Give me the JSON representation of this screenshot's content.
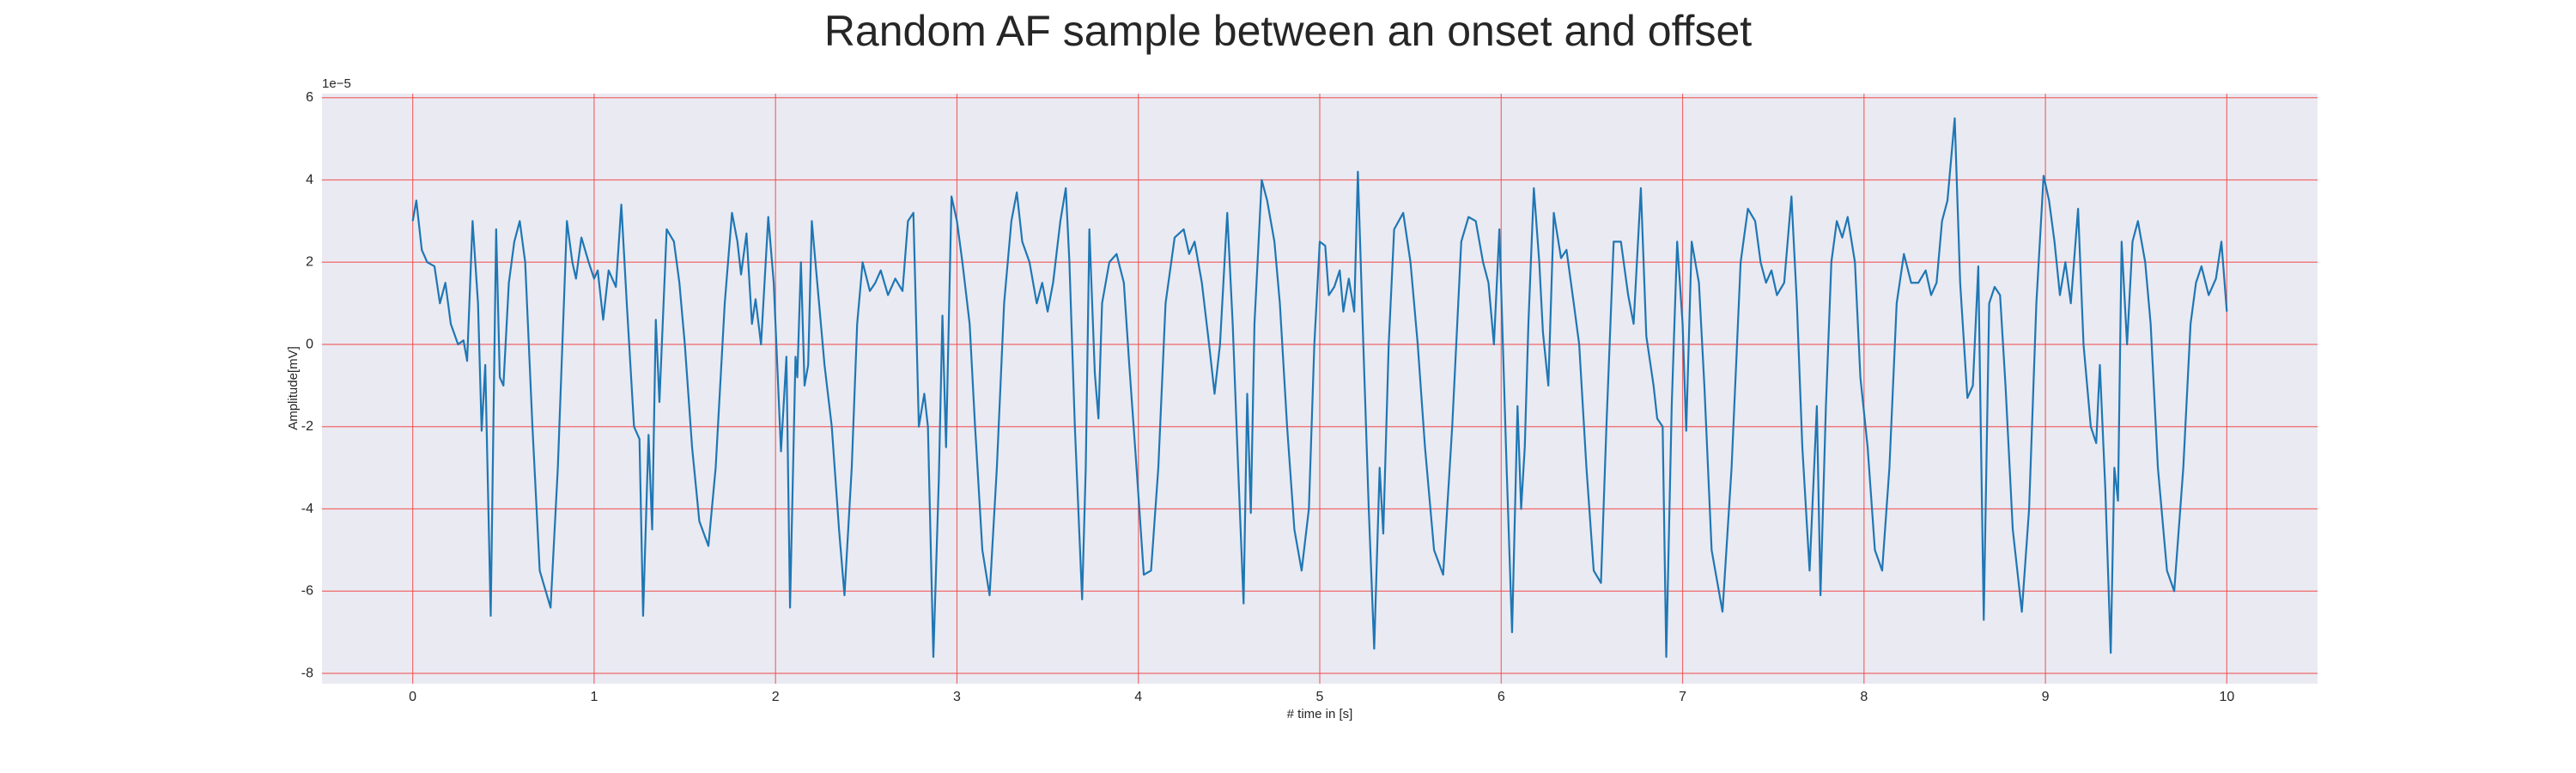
{
  "chart_data": {
    "type": "line",
    "title": "Random AF sample between an onset and offset",
    "xlabel": "# time in [s]",
    "ylabel": "Amplitude[mV]",
    "y_offset_label": "1e−5",
    "color": "#1f77b4",
    "grid": true,
    "xlim": [
      -0.5,
      10.5
    ],
    "ylim": [
      -8.25,
      6.1
    ],
    "xticks": [
      0,
      1,
      2,
      3,
      4,
      5,
      6,
      7,
      8,
      9,
      10
    ],
    "yticks": [
      -8,
      -6,
      -4,
      -2,
      0,
      2,
      4,
      6
    ],
    "x": [
      0.0,
      0.02,
      0.05,
      0.08,
      0.12,
      0.15,
      0.18,
      0.21,
      0.25,
      0.28,
      0.3,
      0.33,
      0.36,
      0.38,
      0.4,
      0.43,
      0.46,
      0.48,
      0.5,
      0.53,
      0.56,
      0.59,
      0.62,
      0.66,
      0.7,
      0.76,
      0.8,
      0.85,
      0.88,
      0.9,
      0.93,
      0.97,
      1.0,
      1.02,
      1.05,
      1.08,
      1.12,
      1.15,
      1.18,
      1.22,
      1.25,
      1.27,
      1.3,
      1.32,
      1.34,
      1.36,
      1.4,
      1.44,
      1.47,
      1.5,
      1.54,
      1.58,
      1.63,
      1.67,
      1.72,
      1.76,
      1.79,
      1.81,
      1.84,
      1.87,
      1.89,
      1.92,
      1.96,
      1.99,
      2.03,
      2.06,
      2.08,
      2.11,
      2.12,
      2.14,
      2.16,
      2.18,
      2.2,
      2.23,
      2.27,
      2.31,
      2.35,
      2.38,
      2.42,
      2.45,
      2.48,
      2.52,
      2.55,
      2.58,
      2.62,
      2.66,
      2.7,
      2.73,
      2.76,
      2.79,
      2.82,
      2.84,
      2.87,
      2.9,
      2.92,
      2.94,
      2.97,
      3.0,
      3.03,
      3.07,
      3.1,
      3.14,
      3.18,
      3.22,
      3.26,
      3.3,
      3.33,
      3.36,
      3.4,
      3.44,
      3.47,
      3.5,
      3.53,
      3.57,
      3.6,
      3.62,
      3.65,
      3.69,
      3.71,
      3.73,
      3.76,
      3.78,
      3.8,
      3.84,
      3.88,
      3.92,
      3.95,
      3.99,
      4.03,
      4.07,
      4.11,
      4.15,
      4.2,
      4.25,
      4.28,
      4.31,
      4.35,
      4.39,
      4.42,
      4.45,
      4.49,
      4.52,
      4.55,
      4.58,
      4.6,
      4.62,
      4.64,
      4.68,
      4.71,
      4.75,
      4.78,
      4.82,
      4.86,
      4.9,
      4.94,
      4.97,
      5.0,
      5.03,
      5.05,
      5.08,
      5.11,
      5.13,
      5.16,
      5.19,
      5.21,
      5.24,
      5.27,
      5.3,
      5.33,
      5.35,
      5.38,
      5.41,
      5.46,
      5.5,
      5.54,
      5.58,
      5.63,
      5.68,
      5.73,
      5.78,
      5.82,
      5.86,
      5.9,
      5.93,
      5.96,
      5.99,
      6.03,
      6.06,
      6.09,
      6.11,
      6.13,
      6.15,
      6.18,
      6.21,
      6.23,
      6.26,
      6.29,
      6.33,
      6.36,
      6.4,
      6.43,
      6.47,
      6.51,
      6.55,
      6.58,
      6.62,
      6.66,
      6.7,
      6.73,
      6.77,
      6.8,
      6.84,
      6.86,
      6.89,
      6.91,
      6.94,
      6.97,
      7.0,
      7.02,
      7.05,
      7.09,
      7.12,
      7.16,
      7.22,
      7.27,
      7.32,
      7.36,
      7.4,
      7.43,
      7.46,
      7.49,
      7.52,
      7.56,
      7.6,
      7.63,
      7.66,
      7.7,
      7.74,
      7.76,
      7.79,
      7.82,
      7.85,
      7.88,
      7.91,
      7.95,
      7.98,
      8.02,
      8.06,
      8.1,
      8.14,
      8.18,
      8.22,
      8.26,
      8.3,
      8.34,
      8.37,
      8.4,
      8.43,
      8.46,
      8.5,
      8.53,
      8.57,
      8.6,
      8.63,
      8.66,
      8.69,
      8.72,
      8.75,
      8.78,
      8.82,
      8.87,
      8.91,
      8.95,
      8.99,
      9.02,
      9.05,
      9.08,
      9.11,
      9.14,
      9.18,
      9.21,
      9.25,
      9.28,
      9.3,
      9.33,
      9.36,
      9.38,
      9.4,
      9.42,
      9.45,
      9.48,
      9.51,
      9.55,
      9.58,
      9.62,
      9.67,
      9.71,
      9.76,
      9.8,
      9.83,
      9.86,
      9.9,
      9.94,
      9.97,
      10.0
    ],
    "values": [
      3.0,
      3.5,
      2.3,
      2.0,
      1.9,
      1.0,
      1.5,
      0.5,
      0.0,
      0.1,
      -0.4,
      3.0,
      1.0,
      -2.1,
      -0.5,
      -6.6,
      2.8,
      -0.8,
      -1.0,
      1.5,
      2.5,
      3.0,
      2.0,
      -2.0,
      -5.5,
      -6.4,
      -3.0,
      3.0,
      2.0,
      1.6,
      2.6,
      2.0,
      1.6,
      1.8,
      0.6,
      1.8,
      1.4,
      3.4,
      1.0,
      -2.0,
      -2.3,
      -6.6,
      -2.2,
      -4.5,
      0.6,
      -1.4,
      2.8,
      2.5,
      1.5,
      0.0,
      -2.5,
      -4.3,
      -4.9,
      -3.0,
      1.0,
      3.2,
      2.5,
      1.7,
      2.7,
      0.5,
      1.1,
      0.0,
      3.1,
      1.5,
      -2.6,
      -0.3,
      -6.4,
      -0.3,
      -0.8,
      2.0,
      -1.0,
      -0.5,
      3.0,
      1.5,
      -0.5,
      -2.0,
      -4.5,
      -6.1,
      -3.0,
      0.5,
      2.0,
      1.3,
      1.5,
      1.8,
      1.2,
      1.6,
      1.3,
      3.0,
      3.2,
      -2.0,
      -1.2,
      -2.0,
      -7.6,
      -3.3,
      0.7,
      -2.5,
      3.6,
      3.0,
      2.0,
      0.5,
      -2.0,
      -5.0,
      -6.1,
      -3.0,
      1.0,
      3.0,
      3.7,
      2.5,
      2.0,
      1.0,
      1.5,
      0.8,
      1.5,
      3.0,
      3.8,
      2.0,
      -2.0,
      -6.2,
      -3.0,
      2.8,
      -0.7,
      -1.8,
      1.0,
      2.0,
      2.2,
      1.5,
      -0.5,
      -3.0,
      -5.6,
      -5.5,
      -3.0,
      1.0,
      2.6,
      2.8,
      2.2,
      2.5,
      1.5,
      0.0,
      -1.2,
      0.0,
      3.2,
      0.5,
      -3.0,
      -6.3,
      -1.2,
      -4.1,
      0.5,
      4.0,
      3.5,
      2.5,
      1.0,
      -2.0,
      -4.5,
      -5.5,
      -4.0,
      0.0,
      2.5,
      2.4,
      1.2,
      1.4,
      1.8,
      0.8,
      1.6,
      0.8,
      4.2,
      0.0,
      -4.0,
      -7.4,
      -3.0,
      -4.6,
      0.0,
      2.8,
      3.2,
      2.0,
      0.0,
      -2.5,
      -5.0,
      -5.6,
      -2.0,
      2.5,
      3.1,
      3.0,
      2.0,
      1.5,
      0.0,
      2.8,
      -3.0,
      -7.0,
      -1.5,
      -4.0,
      -2.5,
      0.5,
      3.8,
      2.0,
      0.3,
      -1.0,
      3.2,
      2.1,
      2.3,
      1.0,
      0.0,
      -3.0,
      -5.5,
      -5.8,
      -2.0,
      2.5,
      2.5,
      1.2,
      0.5,
      3.8,
      0.2,
      -1.0,
      -1.8,
      -2.0,
      -7.6,
      -1.5,
      2.5,
      0.5,
      -2.1,
      2.5,
      1.5,
      -1.0,
      -5.0,
      -6.5,
      -3.0,
      2.0,
      3.3,
      3.0,
      2.0,
      1.5,
      1.8,
      1.2,
      1.5,
      3.6,
      1.0,
      -2.5,
      -5.5,
      -1.5,
      -6.1,
      -1.5,
      2.0,
      3.0,
      2.6,
      3.1,
      2.0,
      -0.8,
      -2.5,
      -5.0,
      -5.5,
      -3.0,
      1.0,
      2.2,
      1.5,
      1.5,
      1.8,
      1.2,
      1.5,
      3.0,
      3.5,
      5.5,
      1.5,
      -1.3,
      -1.0,
      1.9,
      -6.7,
      1.0,
      1.4,
      1.2,
      -1.0,
      -4.5,
      -6.5,
      -4.0,
      1.0,
      4.1,
      3.5,
      2.5,
      1.2,
      2.0,
      1.0,
      3.3,
      0.0,
      -2.0,
      -2.4,
      -0.5,
      -3.5,
      -7.5,
      -3.0,
      -3.8,
      2.5,
      0.0,
      2.5,
      3.0,
      2.0,
      0.5,
      -3.0,
      -5.5,
      -6.0,
      -3.0,
      0.5,
      1.5,
      1.9,
      1.2,
      1.6,
      2.5,
      0.8
    ]
  }
}
